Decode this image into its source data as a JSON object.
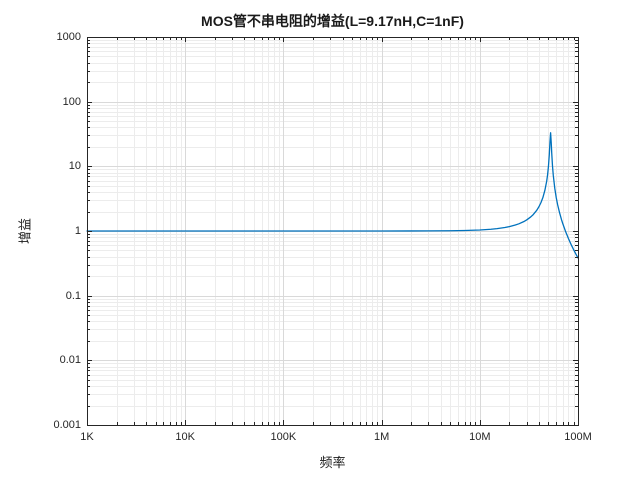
{
  "chart_data": {
    "type": "line",
    "title": "MOS管不串电阻的增益(L=9.17nH,C=1nF)",
    "xlabel": "频率",
    "ylabel": "增益",
    "x_scale": "log",
    "y_scale": "log",
    "xlim": [
      1000,
      100000000
    ],
    "ylim": [
      0.001,
      1000
    ],
    "grid": {
      "major": true,
      "minor": true,
      "legend": "none"
    },
    "colors": {
      "line": "#0072BD",
      "axis": "#262626",
      "major_grid": "#d9d9d9",
      "minor_grid": "#ececec",
      "background": "#ffffff",
      "text": "#1a1a1a"
    },
    "x_ticks": [
      {
        "value": 1000,
        "label": "1K"
      },
      {
        "value": 10000,
        "label": "10K"
      },
      {
        "value": 100000,
        "label": "100K"
      },
      {
        "value": 1000000,
        "label": "1M"
      },
      {
        "value": 10000000,
        "label": "10M"
      },
      {
        "value": 100000000,
        "label": "100M"
      }
    ],
    "y_ticks": [
      {
        "value": 1000,
        "label": "1000"
      },
      {
        "value": 100,
        "label": "100"
      },
      {
        "value": 10,
        "label": "10"
      },
      {
        "value": 1,
        "label": "1"
      },
      {
        "value": 0.1,
        "label": "0.1"
      },
      {
        "value": 0.01,
        "label": "0.01"
      },
      {
        "value": 0.001,
        "label": "0.001"
      }
    ],
    "series": [
      {
        "name": "增益",
        "points": [
          [
            1000,
            1.0
          ],
          [
            2000,
            1.0
          ],
          [
            5000,
            1.0
          ],
          [
            10000,
            1.0
          ],
          [
            20000,
            1.0
          ],
          [
            50000,
            1.0
          ],
          [
            100000,
            1.0
          ],
          [
            200000,
            1.0
          ],
          [
            500000,
            1.0001
          ],
          [
            1000000,
            1.0004
          ],
          [
            2000000,
            1.0014
          ],
          [
            3000000,
            1.0033
          ],
          [
            5000000,
            1.0091
          ],
          [
            7000000,
            1.018
          ],
          [
            10000000,
            1.0375
          ],
          [
            13000000,
            1.065
          ],
          [
            15000000,
            1.0885
          ],
          [
            18000000,
            1.133
          ],
          [
            20000000,
            1.169
          ],
          [
            23000000,
            1.236
          ],
          [
            25000000,
            1.292
          ],
          [
            28000000,
            1.395
          ],
          [
            30000000,
            1.482
          ],
          [
            33000000,
            1.649
          ],
          [
            35000000,
            1.794
          ],
          [
            38000000,
            2.09
          ],
          [
            40000000,
            2.371
          ],
          [
            42000000,
            2.76
          ],
          [
            44000000,
            3.33
          ],
          [
            46000000,
            4.25
          ],
          [
            48000000,
            5.9
          ],
          [
            49000000,
            7.4
          ],
          [
            50000000,
            9.94
          ],
          [
            51000000,
            15.0
          ],
          [
            51800000,
            23.6
          ],
          [
            52600000,
            33.0
          ],
          [
            53400000,
            23.1
          ],
          [
            54000000,
            16.1
          ],
          [
            55000000,
            10.1
          ],
          [
            56000000,
            7.29
          ],
          [
            58000000,
            4.58
          ],
          [
            60000000,
            3.3
          ],
          [
            62000000,
            2.56
          ],
          [
            65000000,
            1.9
          ],
          [
            68000000,
            1.49
          ],
          [
            70000000,
            1.3
          ],
          [
            75000000,
            0.968
          ],
          [
            80000000,
            0.761
          ],
          [
            85000000,
            0.62
          ],
          [
            90000000,
            0.519
          ],
          [
            95000000,
            0.442
          ],
          [
            100000000,
            0.383
          ]
        ]
      }
    ]
  }
}
